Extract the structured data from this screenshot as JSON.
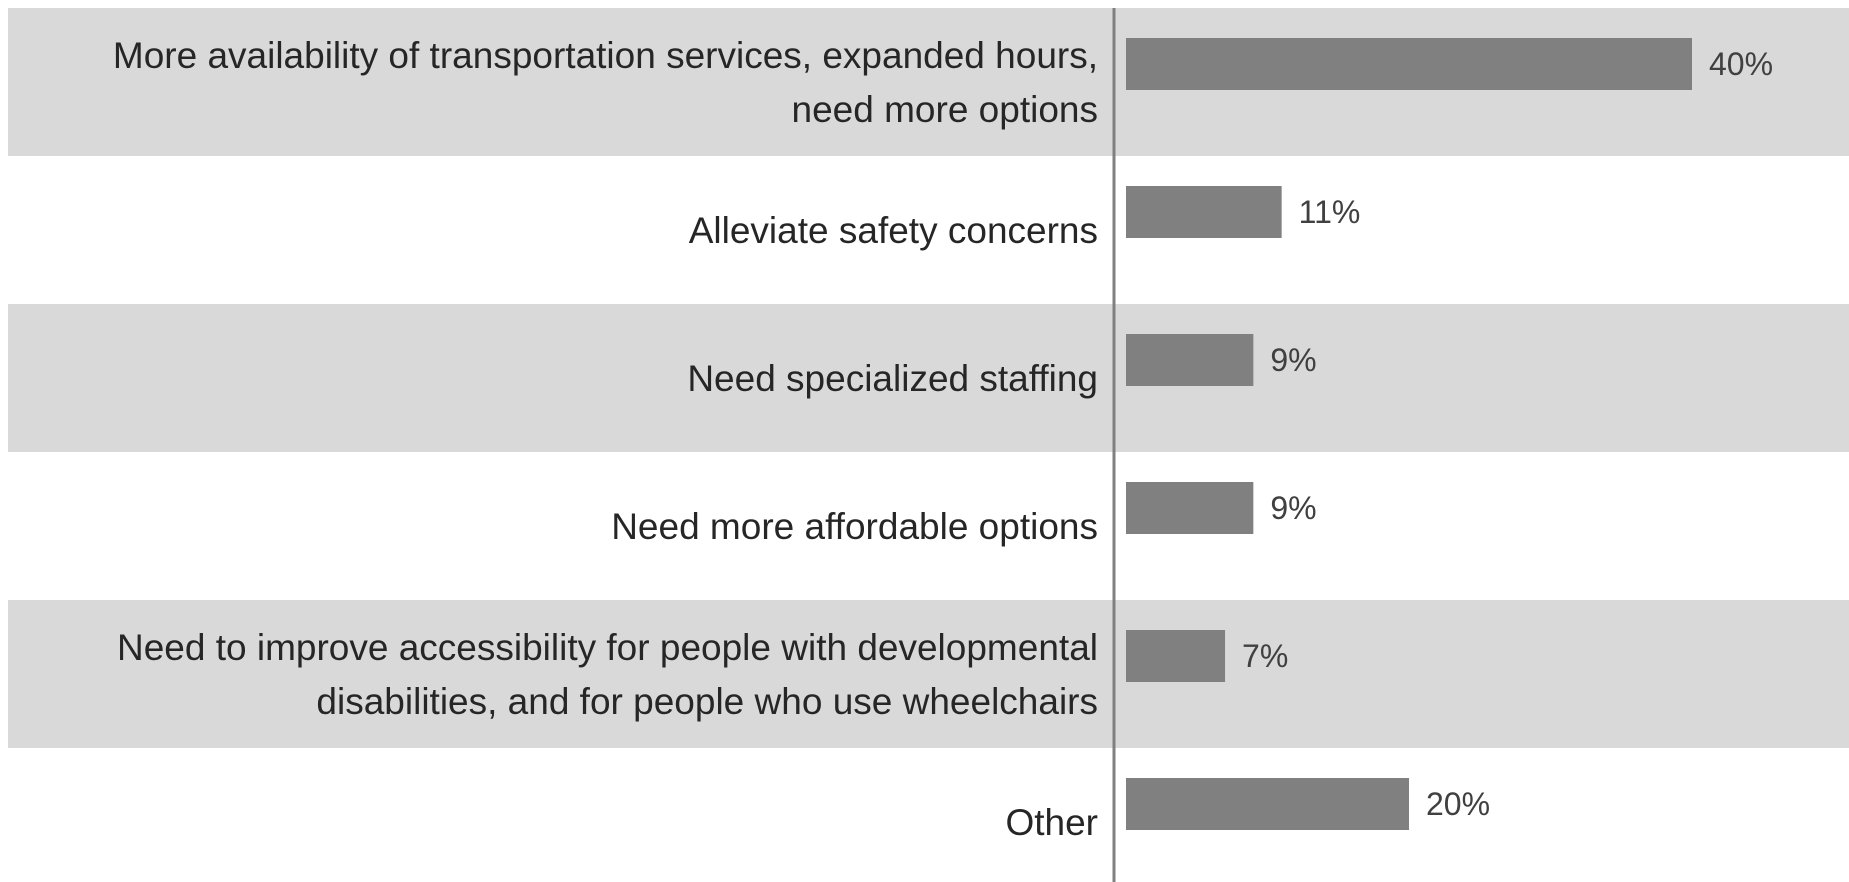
{
  "chart_data": {
    "type": "bar",
    "orientation": "horizontal",
    "categories": [
      [
        "More availability of transportation services, expanded hours,",
        "need more options"
      ],
      [
        "Alleviate safety concerns"
      ],
      [
        "Need specialized staffing"
      ],
      [
        "Need more affordable options"
      ],
      [
        "Need to improve accessibility for people with developmental",
        "disabilities, and for people who use wheelchairs"
      ],
      [
        "Other"
      ]
    ],
    "values": [
      40,
      11,
      9,
      9,
      7,
      20
    ],
    "value_labels": [
      "40%",
      "11%",
      "9%",
      "9%",
      "7%",
      "20%"
    ],
    "xlim": [
      0,
      100
    ],
    "title": "",
    "xlabel": "",
    "ylabel": "",
    "legend": "none",
    "grid": false,
    "colors": {
      "bar": "#808080",
      "band": "#d9d9d9",
      "axis": "#808080",
      "category_text": "#262626",
      "value_text": "#404040"
    }
  }
}
